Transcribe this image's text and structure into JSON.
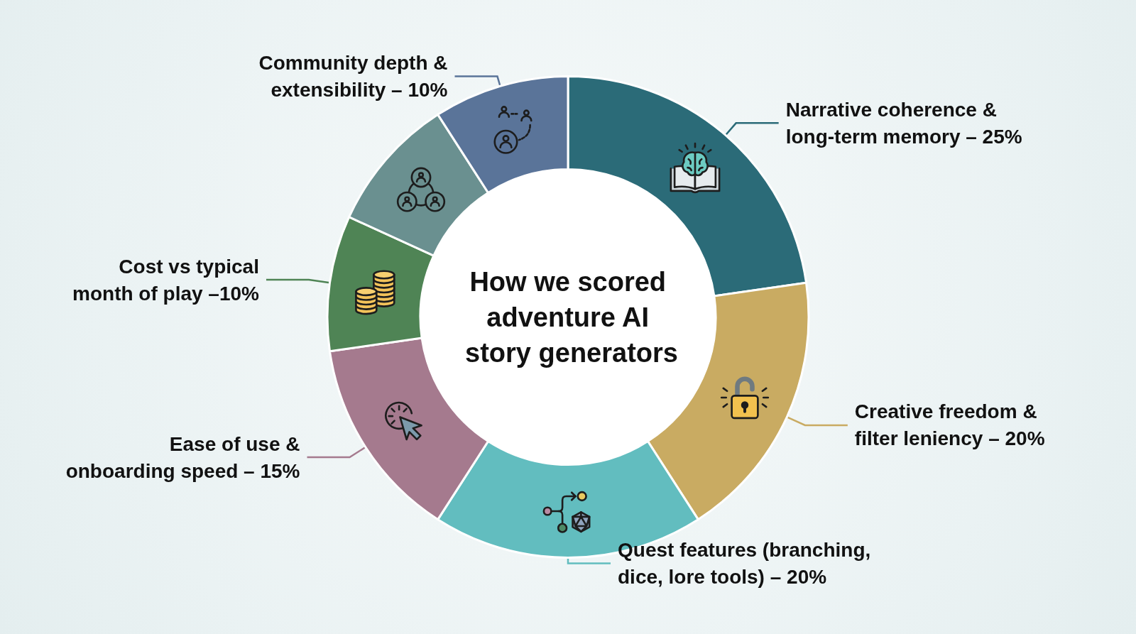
{
  "chart_data": {
    "type": "donut",
    "title": "How we scored adventure AI story generators",
    "categories": [
      "Narrative coherence & long-term memory – ",
      "Creative freedom & filter leniency – ",
      "Quest features (branching, dice, lore tools) – ",
      "Ease of use & onboarding speed – ",
      "Cost vs typical month of play –",
      null,
      "Community depth & extensibility – "
    ],
    "values": [
      25,
      20,
      20,
      15,
      10,
      10,
      10
    ],
    "value_labels": [
      "25%",
      "20%",
      "20%",
      "15%",
      "10%",
      null,
      "10%"
    ],
    "colors": [
      "#2b6b78",
      "#c9ab62",
      "#62bdbf",
      "#a57a8e",
      "#4f8455",
      "#6a9090",
      "#5a7499"
    ]
  }
}
